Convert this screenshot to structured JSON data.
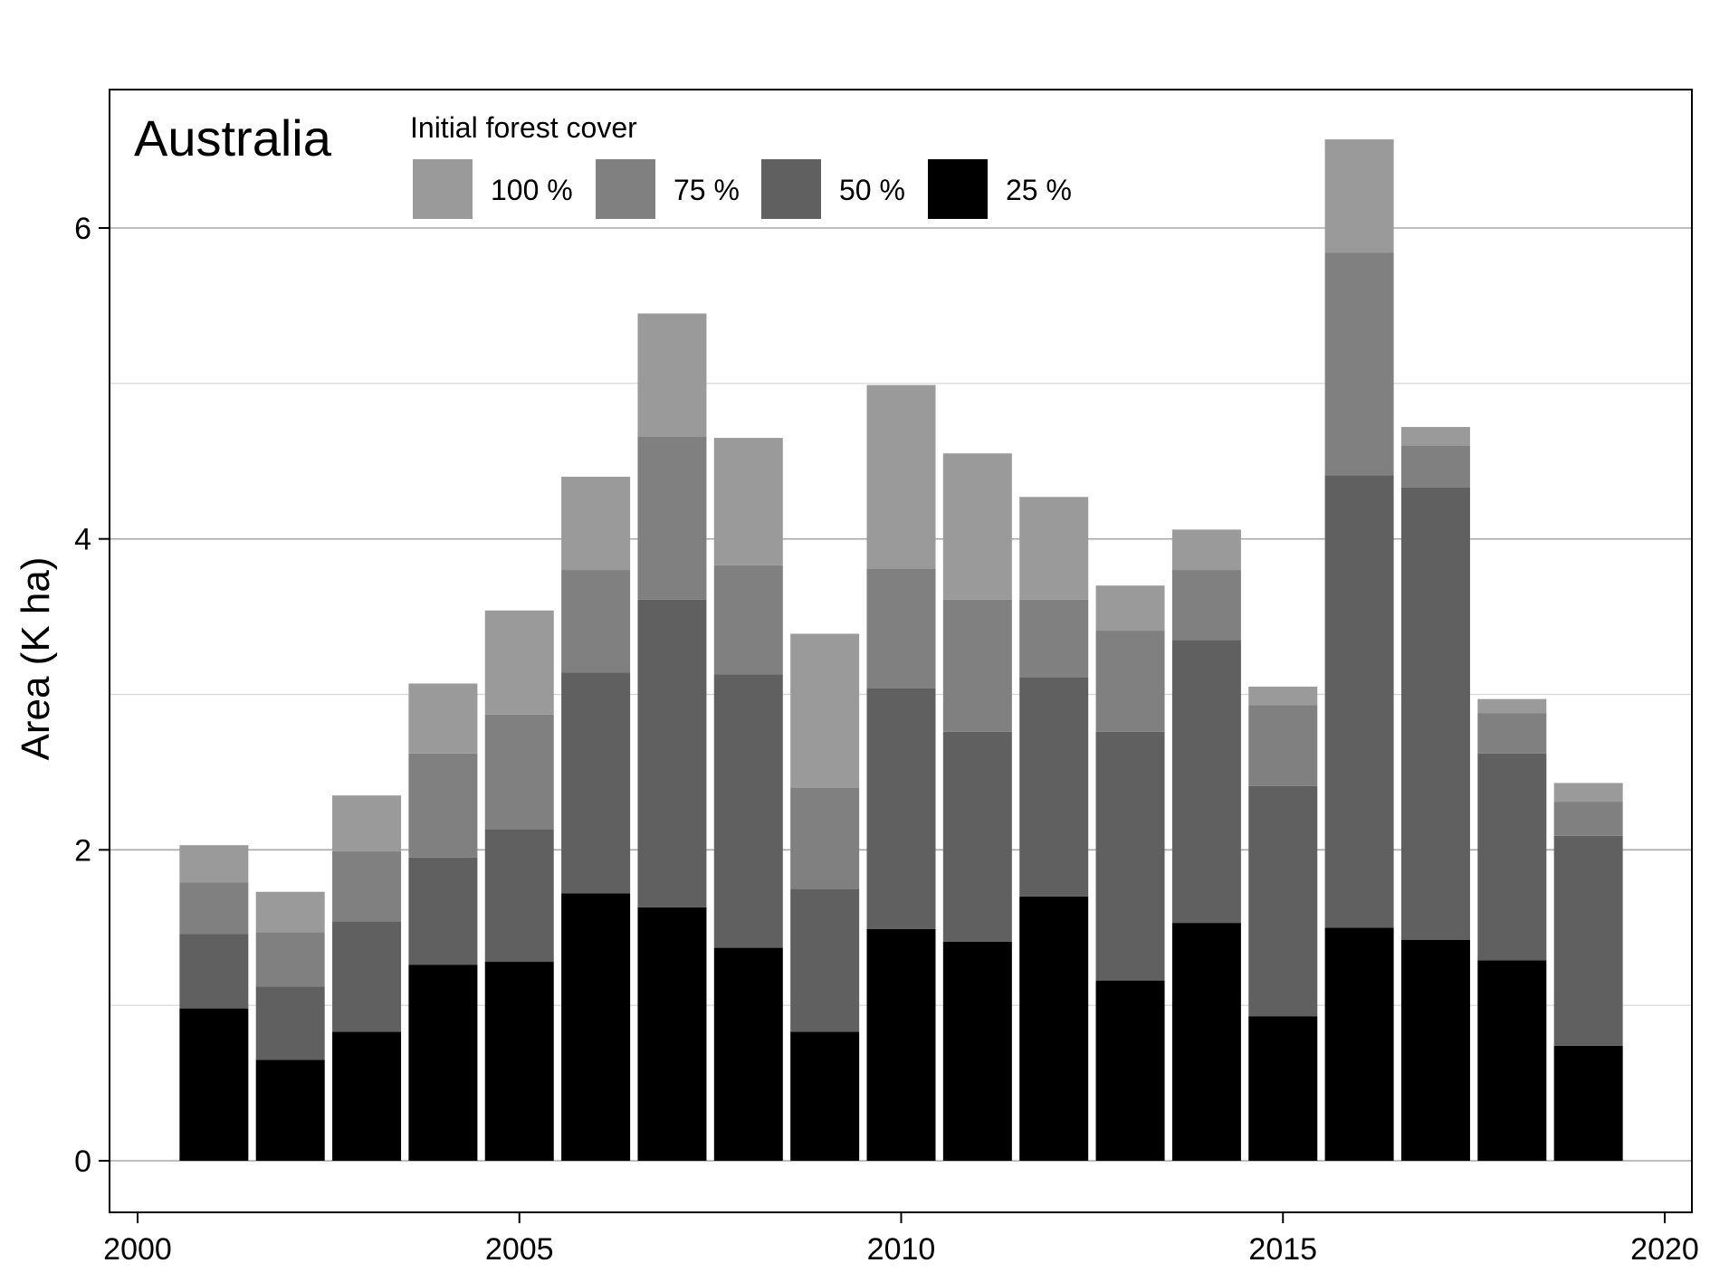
{
  "chart_data": {
    "type": "bar",
    "stacked": true,
    "title": "Australia",
    "xlabel": "",
    "ylabel": "Area (K ha)",
    "legend_title": "Initial forest cover",
    "legend_placement": "top",
    "xlim": [
      2000,
      2020
    ],
    "ylim": [
      -0.3,
      6.85
    ],
    "xticks": [
      2000,
      2005,
      2010,
      2015,
      2020
    ],
    "yticks": [
      0,
      2,
      4,
      6
    ],
    "minor_grid": [
      1,
      3,
      5
    ],
    "grid": true,
    "x": [
      2001,
      2002,
      2003,
      2004,
      2005,
      2006,
      2007,
      2008,
      2009,
      2010,
      2011,
      2012,
      2013,
      2014,
      2015,
      2016,
      2017,
      2018,
      2019
    ],
    "series": [
      {
        "name": "25 %",
        "color": "#000000",
        "values": [
          0.98,
          0.65,
          0.83,
          1.26,
          1.28,
          1.72,
          1.63,
          1.37,
          0.83,
          1.49,
          1.41,
          1.7,
          1.16,
          1.53,
          0.93,
          1.5,
          1.42,
          1.29,
          0.74
        ]
      },
      {
        "name": "50 %",
        "color": "#606060",
        "values": [
          0.48,
          0.47,
          0.71,
          0.69,
          0.85,
          1.42,
          1.98,
          1.76,
          0.92,
          1.55,
          1.35,
          1.41,
          1.6,
          1.82,
          1.48,
          2.91,
          2.91,
          1.33,
          1.35
        ]
      },
      {
        "name": "75 %",
        "color": "#808080",
        "values": [
          0.33,
          0.35,
          0.45,
          0.67,
          0.74,
          0.66,
          1.05,
          0.7,
          0.65,
          0.77,
          0.85,
          0.5,
          0.65,
          0.45,
          0.52,
          1.43,
          0.27,
          0.26,
          0.22
        ]
      },
      {
        "name": "100 %",
        "color": "#9a9a9a",
        "values": [
          0.24,
          0.26,
          0.36,
          0.45,
          0.67,
          0.6,
          0.79,
          0.82,
          0.99,
          1.18,
          0.94,
          0.66,
          0.29,
          0.26,
          0.12,
          0.73,
          0.12,
          0.09,
          0.12
        ]
      }
    ]
  }
}
